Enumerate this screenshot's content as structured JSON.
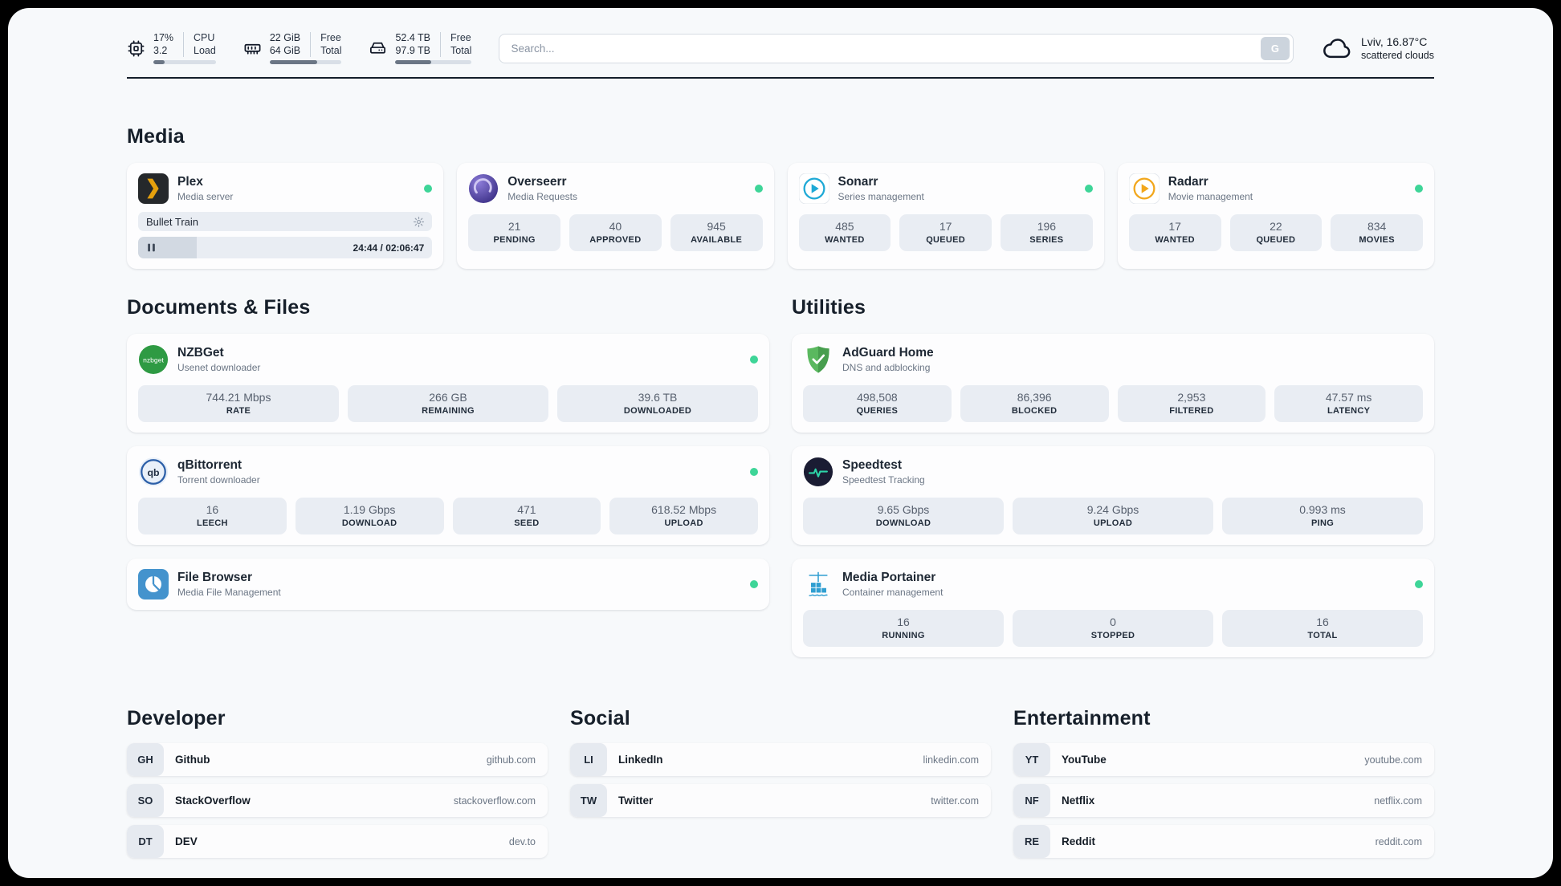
{
  "header": {
    "cpu": {
      "value_top": "17%",
      "value_bottom": "3.2",
      "label_top": "CPU",
      "label_bottom": "Load",
      "progress": 18
    },
    "ram": {
      "value_top": "22 GiB",
      "value_bottom": "64 GiB",
      "label_top": "Free",
      "label_bottom": "Total",
      "progress": 66
    },
    "disk": {
      "value_top": "52.4 TB",
      "value_bottom": "97.9 TB",
      "label_top": "Free",
      "label_bottom": "Total",
      "progress": 47
    },
    "search": {
      "placeholder": "Search...",
      "engine_label": "G"
    },
    "weather": {
      "location": "Lviv, 16.87°C",
      "condition": "scattered clouds"
    }
  },
  "media": {
    "title": "Media",
    "plex": {
      "name": "Plex",
      "subtitle": "Media server",
      "now_playing": "Bullet Train",
      "time": "24:44 / 02:06:47",
      "progress": 20
    },
    "overseerr": {
      "name": "Overseerr",
      "subtitle": "Media Requests",
      "stats": [
        {
          "value": "21",
          "label": "PENDING"
        },
        {
          "value": "40",
          "label": "APPROVED"
        },
        {
          "value": "945",
          "label": "AVAILABLE"
        }
      ]
    },
    "sonarr": {
      "name": "Sonarr",
      "subtitle": "Series management",
      "stats": [
        {
          "value": "485",
          "label": "WANTED"
        },
        {
          "value": "17",
          "label": "QUEUED"
        },
        {
          "value": "196",
          "label": "SERIES"
        }
      ]
    },
    "radarr": {
      "name": "Radarr",
      "subtitle": "Movie management",
      "stats": [
        {
          "value": "17",
          "label": "WANTED"
        },
        {
          "value": "22",
          "label": "QUEUED"
        },
        {
          "value": "834",
          "label": "MOVIES"
        }
      ]
    }
  },
  "documents": {
    "title": "Documents & Files",
    "nzbget": {
      "name": "NZBGet",
      "subtitle": "Usenet downloader",
      "stats": [
        {
          "value": "744.21 Mbps",
          "label": "RATE"
        },
        {
          "value": "266 GB",
          "label": "REMAINING"
        },
        {
          "value": "39.6 TB",
          "label": "DOWNLOADED"
        }
      ]
    },
    "qbittorrent": {
      "name": "qBittorrent",
      "subtitle": "Torrent downloader",
      "stats": [
        {
          "value": "16",
          "label": "LEECH"
        },
        {
          "value": "1.19 Gbps",
          "label": "DOWNLOAD"
        },
        {
          "value": "471",
          "label": "SEED"
        },
        {
          "value": "618.52 Mbps",
          "label": "UPLOAD"
        }
      ]
    },
    "filebrowser": {
      "name": "File Browser",
      "subtitle": "Media File Management"
    }
  },
  "utilities": {
    "title": "Utilities",
    "adguard": {
      "name": "AdGuard Home",
      "subtitle": "DNS and adblocking",
      "stats": [
        {
          "value": "498,508",
          "label": "QUERIES"
        },
        {
          "value": "86,396",
          "label": "BLOCKED"
        },
        {
          "value": "2,953",
          "label": "FILTERED"
        },
        {
          "value": "47.57 ms",
          "label": "LATENCY"
        }
      ]
    },
    "speedtest": {
      "name": "Speedtest",
      "subtitle": "Speedtest Tracking",
      "stats": [
        {
          "value": "9.65 Gbps",
          "label": "DOWNLOAD"
        },
        {
          "value": "9.24 Gbps",
          "label": "UPLOAD"
        },
        {
          "value": "0.993 ms",
          "label": "PING"
        }
      ]
    },
    "portainer": {
      "name": "Media Portainer",
      "subtitle": "Container management",
      "stats": [
        {
          "value": "16",
          "label": "RUNNING"
        },
        {
          "value": "0",
          "label": "STOPPED"
        },
        {
          "value": "16",
          "label": "TOTAL"
        }
      ]
    }
  },
  "links": {
    "developer": {
      "title": "Developer",
      "items": [
        {
          "abbr": "GH",
          "name": "Github",
          "url": "github.com"
        },
        {
          "abbr": "SO",
          "name": "StackOverflow",
          "url": "stackoverflow.com"
        },
        {
          "abbr": "DT",
          "name": "DEV",
          "url": "dev.to"
        }
      ]
    },
    "social": {
      "title": "Social",
      "items": [
        {
          "abbr": "LI",
          "name": "LinkedIn",
          "url": "linkedin.com"
        },
        {
          "abbr": "TW",
          "name": "Twitter",
          "url": "twitter.com"
        }
      ]
    },
    "entertainment": {
      "title": "Entertainment",
      "items": [
        {
          "abbr": "YT",
          "name": "YouTube",
          "url": "youtube.com"
        },
        {
          "abbr": "NF",
          "name": "Netflix",
          "url": "netflix.com"
        },
        {
          "abbr": "RE",
          "name": "Reddit",
          "url": "reddit.com"
        }
      ]
    }
  },
  "colors": {
    "accent_green": "#3ed598",
    "stat_bg": "#e9edf3",
    "page_bg": "#f7f9fb"
  }
}
